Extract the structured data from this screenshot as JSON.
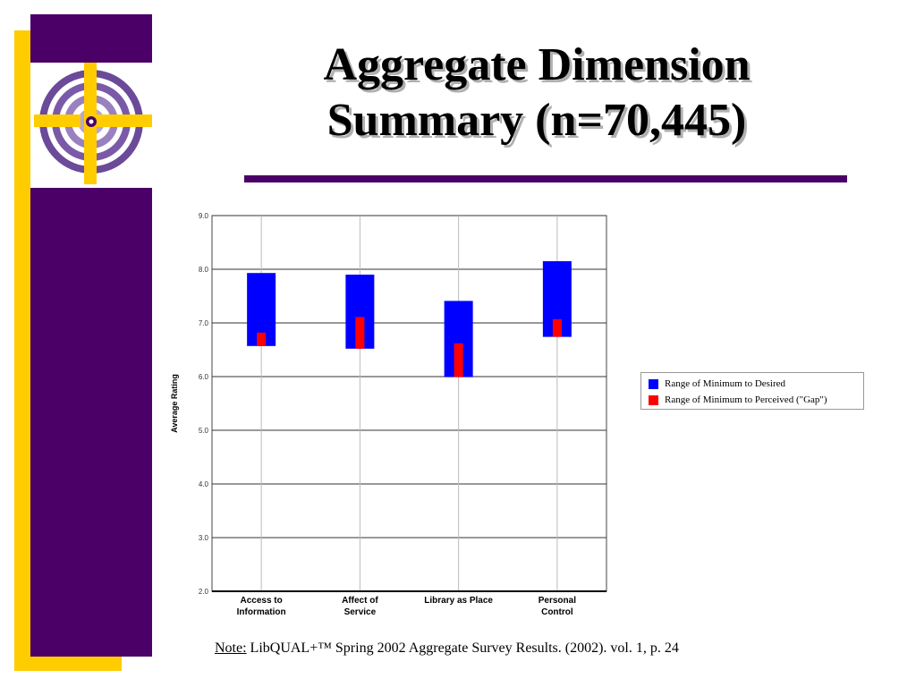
{
  "slide": {
    "title_line1": "Aggregate Dimension",
    "title_line2": "Summary (n=70,445)",
    "note_label": "Note:",
    "note_text": " LibQUAL+™ Spring 2002 Aggregate Survey Results. (2002). vol. 1, p. 24"
  },
  "colors": {
    "purple": "#4a0066",
    "yellow": "#ffcc00",
    "desired_range": "#0000ff",
    "gap_range": "#ff0000"
  },
  "icons": [
    "libqual-logo-icon"
  ],
  "chart_data": {
    "type": "bar",
    "categories": [
      [
        "Access to",
        "Information"
      ],
      [
        "Affect of",
        "Service"
      ],
      [
        "Library as Place"
      ],
      [
        "Personal",
        "Control"
      ]
    ],
    "series": [
      {
        "name": "Range of Minimum to Desired",
        "color": "#0000ff",
        "ranges": [
          [
            6.57,
            7.93
          ],
          [
            6.52,
            7.9
          ],
          [
            5.99,
            7.41
          ],
          [
            6.74,
            8.15
          ]
        ]
      },
      {
        "name": "Range of Minimum to Perceived (\"Gap\")",
        "color": "#ff0000",
        "ranges": [
          [
            6.57,
            6.82
          ],
          [
            6.52,
            7.11
          ],
          [
            5.99,
            6.62
          ],
          [
            6.74,
            7.07
          ]
        ]
      }
    ],
    "ylabel": "Average Rating",
    "xlabel": "",
    "ylim": [
      2.0,
      9.0
    ],
    "yticks": [
      "2.0",
      "3.0",
      "4.0",
      "5.0",
      "6.0",
      "7.0",
      "8.0",
      "9.0"
    ],
    "grid": true,
    "legend_position": "right"
  }
}
